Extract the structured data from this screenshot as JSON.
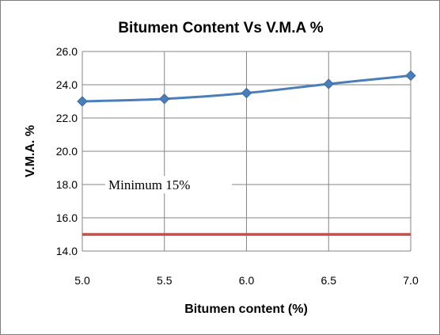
{
  "chart_data": {
    "type": "line",
    "title": "Bitumen Content Vs V.M.A %",
    "xlabel": "Bitumen content (%)",
    "ylabel": "V.M.A. %",
    "xlim": [
      5.0,
      7.0
    ],
    "ylim": [
      14.0,
      26.0
    ],
    "x_ticks": [
      "5.0",
      "5.5",
      "6.0",
      "6.5",
      "7.0"
    ],
    "y_ticks": [
      "14.0",
      "16.0",
      "18.0",
      "20.0",
      "22.0",
      "24.0",
      "26.0"
    ],
    "grid": true,
    "series": [
      {
        "x": [
          5.0,
          5.5,
          6.0,
          6.5,
          7.0
        ],
        "y": [
          23.0,
          23.15,
          23.5,
          24.05,
          24.55
        ],
        "color": "#4a7ebb",
        "marker": "diamond"
      }
    ],
    "reference_lines": [
      {
        "y": 15.0,
        "color": "#c0504d",
        "label": "Minimum 15%"
      }
    ]
  }
}
